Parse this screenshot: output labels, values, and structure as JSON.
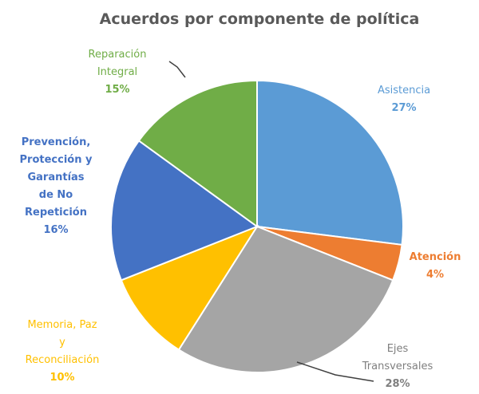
{
  "chart_data": {
    "type": "pie",
    "title": "Acuerdos por componente de política",
    "slices": [
      {
        "category_lines": [
          "Asistencia"
        ],
        "label": "27%",
        "value": 27,
        "color": "#5B9BD5"
      },
      {
        "category_lines": [
          "Atención"
        ],
        "label": "4%",
        "value": 4,
        "color": "#ED7D31"
      },
      {
        "category_lines": [
          "Ejes",
          "Transversales"
        ],
        "label": "28%",
        "value": 28,
        "color": "#A5A5A5"
      },
      {
        "category_lines": [
          "Memoria, Paz",
          "y",
          "Reconciliación"
        ],
        "label": "10%",
        "value": 10,
        "color": "#FFC000"
      },
      {
        "category_lines": [
          "Prevención,",
          "Protección y",
          "Garantías",
          "de No",
          "Repetición"
        ],
        "label": "16%",
        "value": 16,
        "color": "#4472C4"
      },
      {
        "category_lines": [
          "Reparación",
          "Integral"
        ],
        "label": "15%",
        "value": 15,
        "color": "#70AD47"
      }
    ]
  }
}
